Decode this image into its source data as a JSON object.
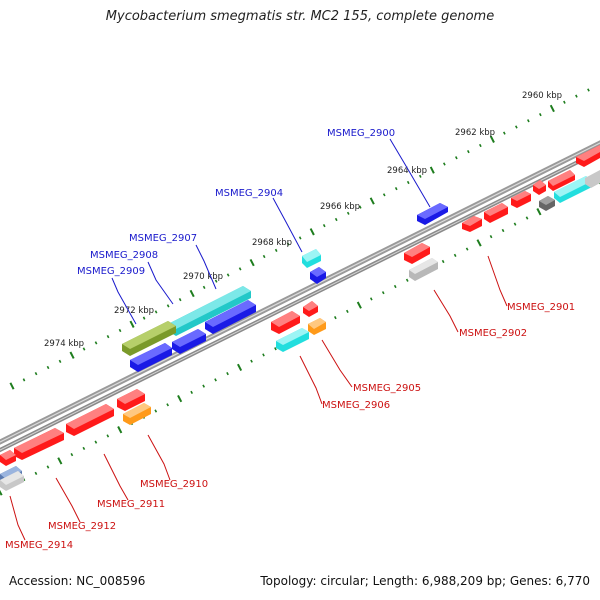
{
  "title": "Mycobacterium smegmatis str. MC2 155, complete genome",
  "footer": {
    "accession": "Accession: NC_008596",
    "summary": "Topology: circular; Length: 6,988,209 bp; Genes: 6,770"
  },
  "colors": {
    "backbone": "#8c8c8c",
    "ticks": "#1e7d1e",
    "label_forward": "#1a1acc",
    "label_reverse": "#cc1111",
    "gene_red": "#ff1a1a",
    "gene_blue": "#1a1ae6",
    "gene_cyan": "#22dede",
    "gene_orange": "#ff9a1a",
    "gene_gray": "#c8c8c8",
    "gene_dark": "#666666",
    "gene_olive": "#7a9a2a"
  },
  "scale_labels": [
    {
      "id": "2960",
      "text": "2960 kbp"
    },
    {
      "id": "2962",
      "text": "2962 kbp"
    },
    {
      "id": "2964",
      "text": "2964 kbp"
    },
    {
      "id": "2966",
      "text": "2966 kbp"
    },
    {
      "id": "2968",
      "text": "2968 kbp"
    },
    {
      "id": "2970",
      "text": "2970 kbp"
    },
    {
      "id": "2972",
      "text": "2972 kbp"
    },
    {
      "id": "2974",
      "text": "2974 kbp"
    }
  ],
  "gene_labels": [
    {
      "id": "MSMEG_2900",
      "text": "MSMEG_2900",
      "strand": "forward"
    },
    {
      "id": "MSMEG_2904",
      "text": "MSMEG_2904",
      "strand": "forward"
    },
    {
      "id": "MSMEG_2907",
      "text": "MSMEG_2907",
      "strand": "forward"
    },
    {
      "id": "MSMEG_2908",
      "text": "MSMEG_2908",
      "strand": "forward"
    },
    {
      "id": "MSMEG_2909",
      "text": "MSMEG_2909",
      "strand": "forward"
    },
    {
      "id": "MSMEG_2901",
      "text": "MSMEG_2901",
      "strand": "reverse"
    },
    {
      "id": "MSMEG_2902",
      "text": "MSMEG_2902",
      "strand": "reverse"
    },
    {
      "id": "MSMEG_2905",
      "text": "MSMEG_2905",
      "strand": "reverse"
    },
    {
      "id": "MSMEG_2906",
      "text": "MSMEG_2906",
      "strand": "reverse"
    },
    {
      "id": "MSMEG_2910",
      "text": "MSMEG_2910",
      "strand": "reverse"
    },
    {
      "id": "MSMEG_2911",
      "text": "MSMEG_2911",
      "strand": "reverse"
    },
    {
      "id": "MSMEG_2912",
      "text": "MSMEG_2912",
      "strand": "reverse"
    },
    {
      "id": "MSMEG_2914",
      "text": "MSMEG_2914",
      "strand": "reverse"
    }
  ]
}
